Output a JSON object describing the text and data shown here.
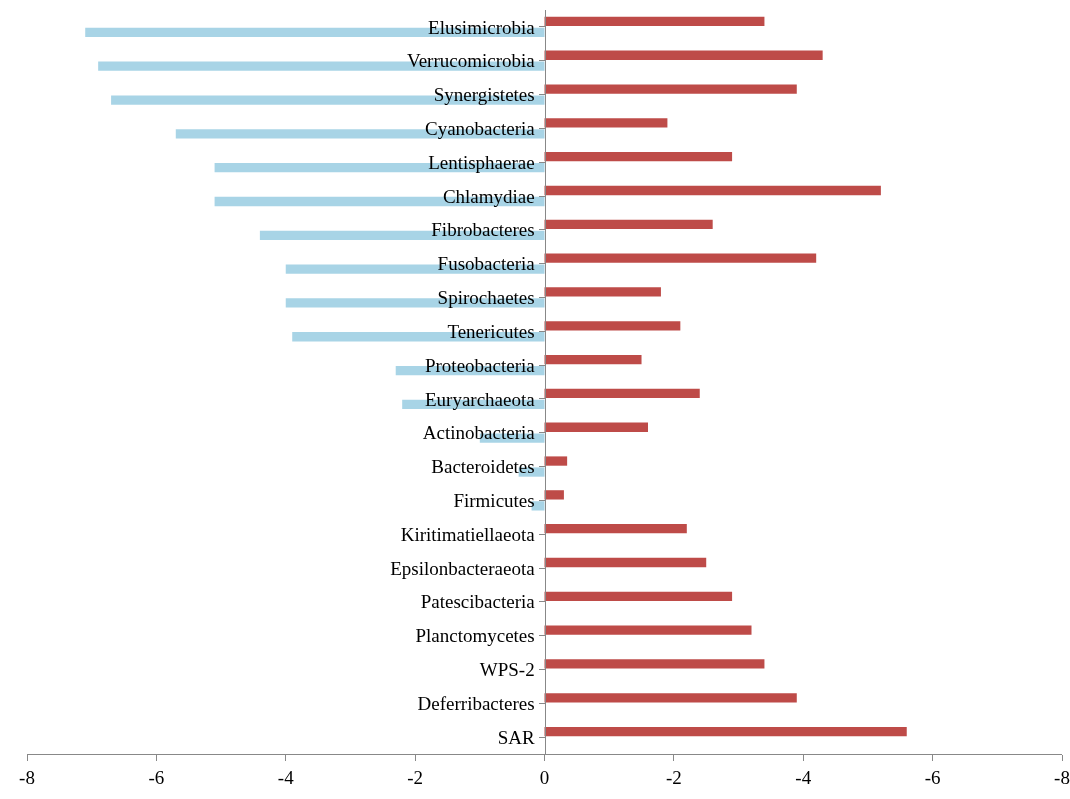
{
  "chart_data": {
    "type": "bar",
    "orientation": "horizontal",
    "categories": [
      "Elusimicrobia",
      "Verrucomicrobia",
      "Synergistetes",
      "Cyanobacteria",
      "Lentisphaerae",
      "Chlamydiae",
      "Fibrobacteres",
      "Fusobacteria",
      "Spirochaetes",
      "Tenericutes",
      "Proteobacteria",
      "Euryarchaeota",
      "Actinobacteria",
      "Bacteroidetes",
      "Firmicutes",
      "Kiritimatiellaeota",
      "Epsilonbacteraeota",
      "Patescibacteria",
      "Planctomycetes",
      "WPS-2",
      "Deferribacteres",
      "SAR"
    ],
    "series": [
      {
        "color": "#be4b48",
        "axis": "x2",
        "values": [
          -3.4,
          -4.3,
          -3.9,
          -1.9,
          -2.9,
          -5.2,
          -2.6,
          -4.2,
          -1.8,
          -2.1,
          -1.5,
          -2.4,
          -1.6,
          -0.35,
          -0.3,
          -2.2,
          -2.5,
          -2.9,
          -3.2,
          -3.4,
          -3.9,
          -5.6
        ]
      },
      {
        "color": "#a8d4e6",
        "values": [
          -7.1,
          -6.9,
          -6.7,
          -5.7,
          -5.1,
          -5.1,
          -4.4,
          -4.0,
          -4.0,
          -3.9,
          -2.3,
          -2.2,
          -1.0,
          -0.4,
          -0.2,
          null,
          null,
          null,
          null,
          null,
          null,
          null
        ]
      }
    ],
    "xlim": [
      -8,
      8
    ],
    "xticks": [
      -8,
      -6,
      -4,
      -2,
      0
    ],
    "x2lim": [
      8,
      -8
    ],
    "x2ticks": [
      -2,
      -4,
      -6,
      -8
    ],
    "grid": false
  }
}
